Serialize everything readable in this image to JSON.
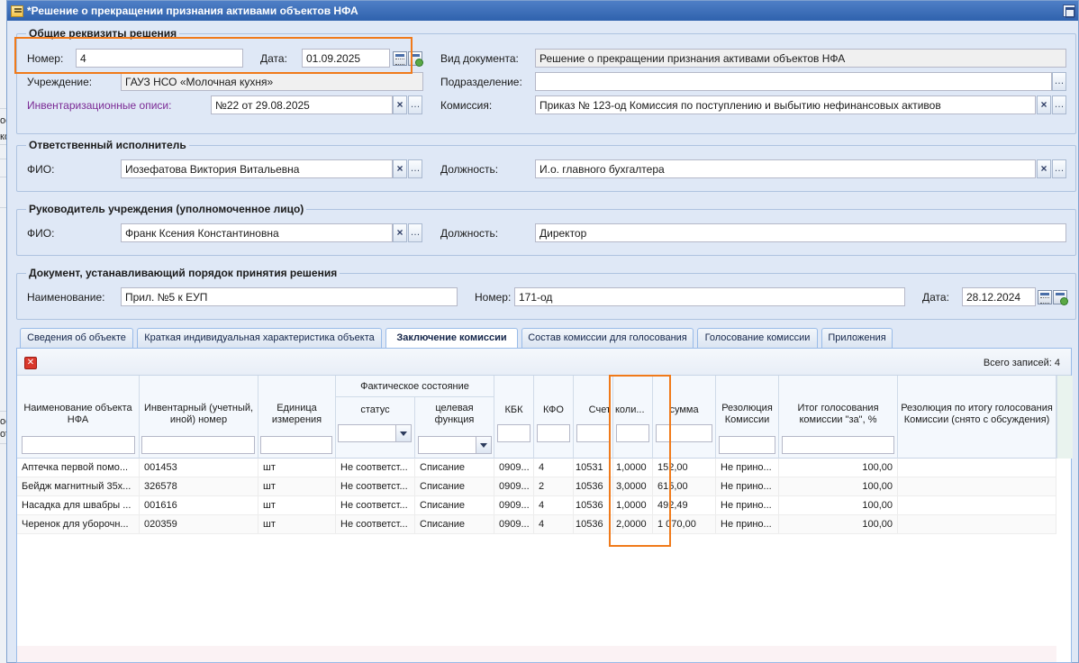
{
  "window": {
    "title": "*Решение о прекращении признания активами объектов НФА"
  },
  "background": {
    "fragments": [
      "ос",
      "ко",
      "ос",
      "от"
    ]
  },
  "general": {
    "legend": "Общие реквизиты решения",
    "number_label": "Номер:",
    "number_value": "4",
    "date_label": "Дата:",
    "date_value": "01.09.2025",
    "doctype_label": "Вид документа:",
    "doctype_value": "Решение о прекращении признания активами объектов НФА",
    "institution_label": "Учреждение:",
    "institution_value": "ГАУЗ НСО «Молочная кухня»",
    "subdivision_label": "Подразделение:",
    "subdivision_value": "",
    "inventory_label": "Инвентаризационные описи:",
    "inventory_value": "№22 от 29.08.2025",
    "commission_label": "Комиссия:",
    "commission_value": "Приказ № 123-од Комиссия по поступлению и выбытию нефинансовых активов"
  },
  "executor": {
    "legend": "Ответственный исполнитель",
    "fio_label": "ФИО:",
    "fio_value": "Иозефатова  Виктория Витальевна",
    "position_label": "Должность:",
    "position_value": "И.о. главного бухгалтера"
  },
  "head": {
    "legend": "Руководитель учреждения (уполномоченное лицо)",
    "fio_label": "ФИО:",
    "fio_value": "Франк Ксения Константиновна",
    "position_label": "Должность:",
    "position_value": "Директор"
  },
  "order_doc": {
    "legend": "Документ, устанавливающий порядок принятия решения",
    "name_label": "Наименование:",
    "name_value": "Прил. №5 к ЕУП",
    "number_label": "Номер:",
    "number_value": "171-од",
    "date_label": "Дата:",
    "date_value": "28.12.2024"
  },
  "tabs": [
    "Сведения об объекте",
    "Краткая индивидуальная характеристика объекта",
    "Заключение комиссии",
    "Состав комиссии для голосования",
    "Голосование комиссии",
    "Приложения"
  ],
  "active_tab": 2,
  "grid": {
    "total_label": "Всего записей:  4",
    "group_header": "Фактическое состояние",
    "columns": [
      "Наименование объекта НФА",
      "Инвентарный (учетный, иной) номер",
      "Единица измерения",
      "статус",
      "целевая функция",
      "КБК",
      "КФО",
      "Счет",
      "коли...",
      "сумма",
      "Резолюция Комиссии",
      "Итог голосования комиссии \"за\", %",
      "Резолюция по итогу голосования Комиссии (снято с обсуждения)"
    ],
    "rows": [
      [
        "Аптечка первой помо...",
        "001453",
        "шт",
        "Не соответст...",
        "Списание",
        "0909...",
        "4",
        "10531",
        "1,0000",
        "152,00",
        "Не прино...",
        "100,00",
        ""
      ],
      [
        "Бейдж магнитный 35х...",
        "326578",
        "шт",
        "Не соответст...",
        "Списание",
        "0909...",
        "2",
        "10536",
        "3,0000",
        "615,00",
        "Не прино...",
        "100,00",
        ""
      ],
      [
        "Насадка для швабры ...",
        "001616",
        "шт",
        "Не соответст...",
        "Списание",
        "0909...",
        "4",
        "10536",
        "1,0000",
        "492,49",
        "Не прино...",
        "100,00",
        ""
      ],
      [
        "Черенок для уборочн...",
        "020359",
        "шт",
        "Не соответст...",
        "Списание",
        "0909...",
        "4",
        "10536",
        "2,0000",
        "1 070,00",
        "Не прино...",
        "100,00",
        ""
      ]
    ]
  },
  "colors": {
    "highlight": "#f07a1a",
    "title_bar": "#2f62ad",
    "link": "#7b2a95"
  }
}
